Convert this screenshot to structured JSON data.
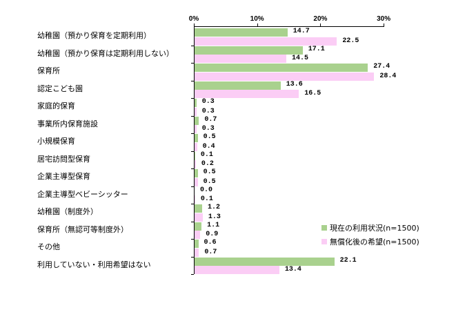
{
  "chart_data": {
    "type": "bar",
    "orientation": "horizontal",
    "title": "",
    "xlabel": "",
    "ylabel": "",
    "xlim": [
      0,
      30
    ],
    "x_ticks": [
      "0%",
      "10%",
      "20%",
      "30%"
    ],
    "grid": false,
    "legend_position": "lower right",
    "categories": [
      "幼稚園（預かり保育を定期利用）",
      "幼稚園（預かり保育は定期利用しない）",
      "保育所",
      "認定こども園",
      "家庭的保育",
      "事業所内保育施設",
      "小規模保育",
      "居宅訪問型保育",
      "企業主導型保育",
      "企業主導型ベビーシッター",
      "幼稚園（制度外）",
      "保育所（無認可等制度外）",
      "その他",
      "利用していない・利用希望はない"
    ],
    "series": [
      {
        "name": "現在の利用状況(n=1500)",
        "color": "#a9d18e",
        "values": [
          14.7,
          17.1,
          27.4,
          13.6,
          0.3,
          0.7,
          0.5,
          0.1,
          0.5,
          0.0,
          1.2,
          1.1,
          0.6,
          22.1
        ],
        "labels": [
          "14.7",
          "17.1",
          "27.4",
          "13.6",
          "0.3",
          "0.7",
          "0.5",
          "0.1",
          "0.5",
          "0.0",
          "1.2",
          "1.1",
          "0.6",
          "22.1"
        ]
      },
      {
        "name": "無償化後の希望(n=1500)",
        "color": "#fbcdf5",
        "values": [
          22.5,
          14.5,
          28.4,
          16.5,
          0.3,
          0.3,
          0.4,
          0.2,
          0.5,
          0.1,
          1.3,
          0.9,
          0.7,
          13.4
        ],
        "labels": [
          "22.5",
          "14.5",
          "28.4",
          "16.5",
          "0.3",
          "0.3",
          "0.4",
          "0.2",
          "0.5",
          "0.1",
          "1.3",
          "0.9",
          "0.7",
          "13.4"
        ]
      }
    ]
  }
}
